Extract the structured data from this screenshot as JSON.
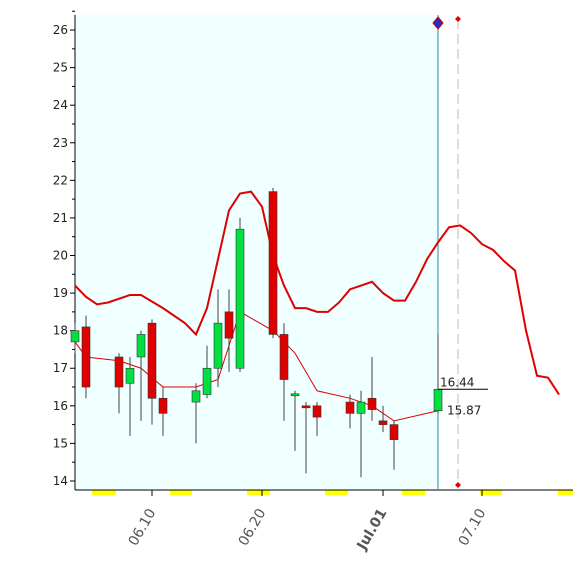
{
  "chart_data": {
    "type": "candlestick",
    "xlim": [
      154,
      199.27
    ],
    "ylim": [
      13.76,
      26.4
    ],
    "yticks": [
      14,
      15,
      16,
      17,
      18,
      19,
      20,
      21,
      22,
      23,
      24,
      25,
      26
    ],
    "xticks": [
      {
        "value": 161,
        "label": "06.10"
      },
      {
        "value": 171,
        "label": "06.20"
      },
      {
        "value": 182,
        "label": "Jul.01"
      },
      {
        "value": 191,
        "label": "07.10"
      }
    ],
    "xtick_colors": [
      "#555555",
      "#555555",
      "#8b0000",
      "#555555"
    ],
    "up_color": "#00e040",
    "down_color": "#e00000",
    "candles": {
      "x": [
        154,
        155,
        158,
        159,
        160,
        161,
        162,
        165,
        166,
        167,
        168,
        169,
        172,
        173,
        174,
        175,
        176,
        179,
        180,
        181,
        182,
        183,
        187
      ],
      "open": [
        17.7,
        18.1,
        17.3,
        16.6,
        17.3,
        18.2,
        16.2,
        16.1,
        16.3,
        17.0,
        18.5,
        17.0,
        21.7,
        17.9,
        16.28,
        16.0,
        16.0,
        16.1,
        15.8,
        16.2,
        15.6,
        15.5,
        15.87
      ],
      "high": [
        18.2,
        18.4,
        17.4,
        17.3,
        18.0,
        18.3,
        16.5,
        16.6,
        17.6,
        19.1,
        19.1,
        21.0,
        21.8,
        18.2,
        16.4,
        16.1,
        16.1,
        16.3,
        16.4,
        17.3,
        16.0,
        15.6,
        17.9
      ],
      "low": [
        17.4,
        16.2,
        15.8,
        15.2,
        15.6,
        15.5,
        15.2,
        15.0,
        16.2,
        16.5,
        16.9,
        16.9,
        17.8,
        15.6,
        14.8,
        14.2,
        15.2,
        15.4,
        14.1,
        15.6,
        15.3,
        14.3,
        15.8
      ],
      "close": [
        18.0,
        16.5,
        16.5,
        17.0,
        17.9,
        16.2,
        15.8,
        16.4,
        17.0,
        18.2,
        17.8,
        20.7,
        17.9,
        16.7,
        16.32,
        15.95,
        15.7,
        15.8,
        16.1,
        15.9,
        15.5,
        15.1,
        16.44
      ]
    },
    "series": [
      {
        "color": "#e00000",
        "width": 1,
        "x": [
          154,
          155,
          158,
          160,
          162,
          165,
          167,
          169,
          172,
          174,
          176,
          179,
          181,
          183,
          187
        ],
        "values": [
          17.7,
          17.3,
          17.2,
          17.0,
          16.5,
          16.5,
          16.7,
          18.5,
          18.0,
          17.4,
          16.4,
          16.2,
          16.0,
          15.6,
          15.87
        ]
      },
      {
        "color": "#e00000",
        "width": 2,
        "x": [
          154,
          155,
          156,
          157,
          159,
          160,
          162,
          164,
          165,
          166,
          167,
          168,
          169,
          170,
          171,
          172,
          173,
          174,
          175,
          176,
          177,
          178,
          179,
          180,
          181,
          182,
          183,
          184,
          185,
          186,
          187,
          188,
          189,
          190,
          191,
          192,
          193,
          194,
          195,
          196,
          197,
          198
        ],
        "values": [
          19.2,
          18.9,
          18.7,
          18.75,
          18.95,
          18.95,
          18.6,
          18.2,
          17.9,
          18.6,
          19.9,
          21.2,
          21.65,
          21.7,
          21.3,
          20.0,
          19.2,
          18.6,
          18.6,
          18.5,
          18.5,
          18.75,
          19.1,
          19.2,
          19.3,
          19.0,
          18.8,
          18.8,
          19.3,
          19.9,
          20.35,
          20.75,
          20.8,
          20.6,
          20.3,
          20.15,
          19.85,
          19.6,
          18.0,
          16.8,
          16.75,
          16.3
        ]
      }
    ],
    "annotations": [
      {
        "x": 187,
        "y": 16.44,
        "text": "16.44"
      },
      {
        "x": 187,
        "y": 15.87,
        "text": "15.87"
      }
    ]
  }
}
